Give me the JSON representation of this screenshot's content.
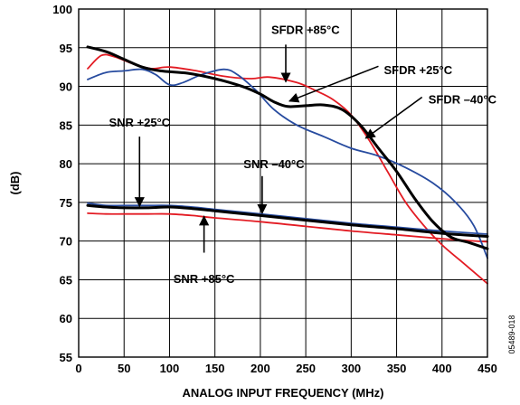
{
  "chart_data": {
    "type": "line",
    "title": "",
    "xlabel": "ANALOG INPUT FREQUENCY (MHz)",
    "ylabel": "(dB)",
    "xlim": [
      0,
      450
    ],
    "ylim": [
      55,
      100
    ],
    "x_ticks": [
      0,
      50,
      100,
      150,
      200,
      250,
      300,
      350,
      400,
      450
    ],
    "y_ticks": [
      55,
      60,
      65,
      70,
      75,
      80,
      85,
      90,
      95,
      100
    ],
    "grid": true,
    "colors": {
      "red": "#e31b23",
      "black": "#000000",
      "blue": "#274b9f"
    },
    "series": [
      {
        "name": "SFDR +85°C",
        "color": "red",
        "points": [
          [
            10,
            92.3
          ],
          [
            25,
            94.0
          ],
          [
            40,
            93.8
          ],
          [
            60,
            92.9
          ],
          [
            80,
            92.3
          ],
          [
            100,
            92.5
          ],
          [
            130,
            92.0
          ],
          [
            160,
            91.3
          ],
          [
            190,
            91.0
          ],
          [
            210,
            91.2
          ],
          [
            240,
            90.5
          ],
          [
            260,
            89.5
          ],
          [
            280,
            88.3
          ],
          [
            300,
            86.3
          ],
          [
            320,
            83.0
          ],
          [
            340,
            79.0
          ],
          [
            360,
            75.0
          ],
          [
            380,
            72.0
          ],
          [
            400,
            69.5
          ],
          [
            420,
            67.5
          ],
          [
            440,
            65.5
          ],
          [
            450,
            64.5
          ]
        ]
      },
      {
        "name": "SFDR +25°C",
        "color": "black",
        "points": [
          [
            10,
            95.1
          ],
          [
            30,
            94.5
          ],
          [
            50,
            93.5
          ],
          [
            70,
            92.5
          ],
          [
            90,
            92.0
          ],
          [
            120,
            91.7
          ],
          [
            150,
            91.0
          ],
          [
            180,
            90.0
          ],
          [
            200,
            89.0
          ],
          [
            215,
            88.0
          ],
          [
            230,
            87.4
          ],
          [
            250,
            87.5
          ],
          [
            270,
            87.6
          ],
          [
            290,
            87.0
          ],
          [
            310,
            85.0
          ],
          [
            330,
            82.0
          ],
          [
            350,
            79.0
          ],
          [
            370,
            75.5
          ],
          [
            390,
            72.5
          ],
          [
            410,
            70.5
          ],
          [
            430,
            69.8
          ],
          [
            450,
            69.0
          ]
        ]
      },
      {
        "name": "SFDR –40°C",
        "color": "blue",
        "points": [
          [
            10,
            90.9
          ],
          [
            30,
            91.8
          ],
          [
            50,
            92.0
          ],
          [
            70,
            92.2
          ],
          [
            85,
            91.5
          ],
          [
            100,
            90.2
          ],
          [
            115,
            90.5
          ],
          [
            135,
            91.5
          ],
          [
            160,
            92.2
          ],
          [
            175,
            91.5
          ],
          [
            195,
            89.5
          ],
          [
            215,
            87.0
          ],
          [
            240,
            85.0
          ],
          [
            270,
            83.5
          ],
          [
            300,
            82.0
          ],
          [
            330,
            81.0
          ],
          [
            360,
            79.5
          ],
          [
            390,
            77.5
          ],
          [
            415,
            75.0
          ],
          [
            435,
            72.0
          ],
          [
            450,
            67.8
          ]
        ]
      },
      {
        "name": "SNR +25°C",
        "color": "black",
        "points": [
          [
            10,
            74.6
          ],
          [
            30,
            74.4
          ],
          [
            50,
            74.3
          ],
          [
            75,
            74.3
          ],
          [
            100,
            74.4
          ],
          [
            125,
            74.2
          ],
          [
            150,
            73.9
          ],
          [
            200,
            73.3
          ],
          [
            250,
            72.7
          ],
          [
            300,
            72.1
          ],
          [
            350,
            71.6
          ],
          [
            400,
            71.0
          ],
          [
            450,
            70.6
          ]
        ]
      },
      {
        "name": "SNR –40°C",
        "color": "blue",
        "points": [
          [
            10,
            74.9
          ],
          [
            30,
            74.6
          ],
          [
            50,
            74.6
          ],
          [
            75,
            74.6
          ],
          [
            100,
            74.6
          ],
          [
            125,
            74.4
          ],
          [
            150,
            74.1
          ],
          [
            200,
            73.5
          ],
          [
            250,
            72.9
          ],
          [
            300,
            72.3
          ],
          [
            350,
            71.8
          ],
          [
            400,
            71.3
          ],
          [
            450,
            70.9
          ]
        ]
      },
      {
        "name": "SNR +85°C",
        "color": "red",
        "points": [
          [
            10,
            73.6
          ],
          [
            30,
            73.5
          ],
          [
            50,
            73.5
          ],
          [
            75,
            73.5
          ],
          [
            100,
            73.5
          ],
          [
            125,
            73.3
          ],
          [
            150,
            73.0
          ],
          [
            200,
            72.5
          ],
          [
            250,
            71.9
          ],
          [
            300,
            71.3
          ],
          [
            350,
            70.8
          ],
          [
            400,
            70.3
          ],
          [
            450,
            69.9
          ]
        ]
      }
    ],
    "annotations": [
      {
        "text": "SFDR +85°C",
        "text_pos": [
          212,
          96.8
        ],
        "anchor": "start",
        "arrow": [
          [
            228,
            95.4
          ],
          [
            228,
            90.6
          ]
        ]
      },
      {
        "text": "SFDR +25°C",
        "text_pos": [
          336,
          91.6
        ],
        "anchor": "start",
        "arrow": [
          [
            330,
            92.6
          ],
          [
            232,
            88.1
          ]
        ]
      },
      {
        "text": "SFDR –40°C",
        "text_pos": [
          385,
          87.8
        ],
        "anchor": "start",
        "arrow": [
          [
            378,
            88.6
          ],
          [
            316,
            83.3
          ]
        ]
      },
      {
        "text": "SNR +25°C",
        "text_pos": [
          67,
          84.8
        ],
        "anchor": "middle",
        "arrow": [
          [
            67,
            83.5
          ],
          [
            67,
            74.5
          ]
        ]
      },
      {
        "text": "SNR –40°C",
        "text_pos": [
          215,
          79.4
        ],
        "anchor": "middle",
        "arrow": [
          [
            202,
            78.4
          ],
          [
            202,
            73.6
          ]
        ]
      },
      {
        "text": "SNR +85°C",
        "text_pos": [
          138,
          64.6
        ],
        "anchor": "middle",
        "arrow": [
          [
            138,
            68.5
          ],
          [
            138,
            73.2
          ]
        ]
      }
    ],
    "doc_id": "05489-018"
  }
}
